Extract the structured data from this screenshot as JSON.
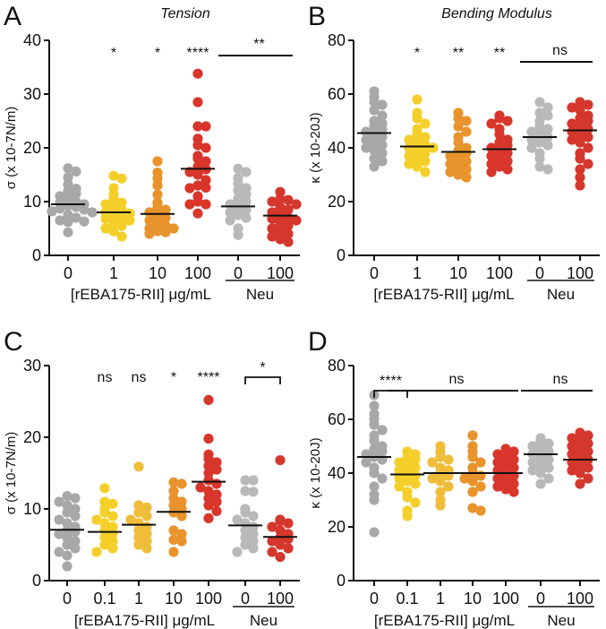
{
  "chart_data": [
    {
      "type": "scatter",
      "panel": "A",
      "title": "Tension",
      "ylabel": "σ (x 10-7N/m)",
      "xlabel": "[rEBA175-RII] μg/mL",
      "group_label": "Neu",
      "ylim": [
        0,
        40
      ],
      "yticks": [
        "0",
        "10",
        "20",
        "30",
        "40"
      ],
      "categories": [
        "0",
        "1",
        "10",
        "100",
        "0",
        "100"
      ],
      "neu_indices": [
        4,
        5
      ],
      "colors": [
        "#a8a8a8",
        "#f4cf2a",
        "#e8932c",
        "#d8362b",
        "#b9b9b9",
        "#d5372c"
      ],
      "means": [
        9.5,
        8.0,
        7.7,
        16.1,
        9.1,
        7.4
      ],
      "values": [
        [
          16.2,
          15.6,
          14.5,
          13.2,
          12.4,
          12,
          11.5,
          11,
          10.5,
          10,
          9.8,
          9.5,
          9.2,
          9,
          8.7,
          8.5,
          8.2,
          8,
          7.5,
          7,
          6.5,
          6.3,
          6.2,
          4.3
        ],
        [
          14.8,
          14.3,
          12.5,
          11.3,
          10.5,
          9.8,
          9.5,
          9,
          8.5,
          8,
          7.8,
          7.5,
          7,
          6.8,
          6.5,
          6,
          5.5,
          5,
          4.5,
          3.5
        ],
        [
          17.5,
          15.4,
          14.3,
          13,
          11.3,
          9.8,
          9,
          8.5,
          8,
          7.5,
          7,
          6.5,
          6,
          5.5,
          5,
          5,
          4.5,
          4.3,
          4
        ],
        [
          33.8,
          28.5,
          24,
          24,
          21.7,
          20.5,
          20,
          18.5,
          18,
          17.5,
          16.5,
          16,
          15.5,
          15,
          14,
          13,
          12.6,
          12.5,
          11,
          10,
          9.5,
          9.5,
          7.8
        ],
        [
          16.1,
          15.5,
          14.4,
          13.3,
          12.5,
          12,
          11.3,
          10.5,
          10,
          9.5,
          9,
          8.5,
          8,
          7.5,
          7,
          6.5,
          5,
          3.8
        ],
        [
          11.8,
          10.5,
          10.3,
          10,
          9.5,
          9,
          8.5,
          8,
          7.5,
          7,
          6.8,
          6.5,
          6,
          5.5,
          5,
          4.5,
          4,
          3.5,
          3,
          2.5
        ]
      ],
      "significance": [
        {
          "label": "*",
          "from": 1,
          "to": 1,
          "style": "none"
        },
        {
          "label": "*",
          "from": 2,
          "to": 2,
          "style": "none"
        },
        {
          "label": "****",
          "from": 3,
          "to": 3,
          "style": "none"
        },
        {
          "label": "**",
          "from": 4,
          "to": 5,
          "style": "line"
        }
      ]
    },
    {
      "type": "scatter",
      "panel": "B",
      "title": "Bending Modulus",
      "ylabel": "κ (x 10-20J)",
      "xlabel": "[rEBA175-RII] μg/mL",
      "group_label": "Neu",
      "ylim": [
        0,
        80
      ],
      "yticks": [
        "0",
        "20",
        "40",
        "60",
        "80"
      ],
      "categories": [
        "0",
        "1",
        "10",
        "100",
        "0",
        "100"
      ],
      "neu_indices": [
        4,
        5
      ],
      "colors": [
        "#a8a8a8",
        "#f4cf2a",
        "#e8932c",
        "#d8362b",
        "#b9b9b9",
        "#d5372c"
      ],
      "means": [
        45.5,
        40.5,
        38.5,
        39.5,
        44,
        46.5
      ],
      "values": [
        [
          61,
          59,
          57,
          56,
          54,
          52,
          50,
          49,
          48,
          47,
          46,
          45,
          44,
          43,
          42,
          41,
          40,
          39,
          38,
          36,
          35,
          33
        ],
        [
          58,
          53,
          51,
          49,
          47,
          45,
          44,
          43,
          42,
          41,
          40,
          40,
          39,
          38,
          37,
          36,
          35,
          34,
          33,
          31
        ],
        [
          53,
          51,
          50,
          48,
          46,
          44,
          42,
          40,
          39,
          38,
          37,
          36,
          35,
          34,
          33,
          32,
          31,
          30,
          29
        ],
        [
          52,
          51,
          50,
          49,
          47,
          45,
          43,
          42,
          41,
          40,
          39,
          38,
          37,
          36,
          35,
          34,
          33,
          32,
          31
        ],
        [
          57,
          55,
          53,
          52,
          50,
          48,
          47,
          46,
          45,
          44,
          43,
          42,
          41,
          40,
          38,
          36,
          33,
          32
        ],
        [
          57,
          56,
          55,
          54,
          52,
          51,
          50,
          49,
          48,
          47,
          46,
          45,
          44,
          43,
          42,
          40,
          38,
          36,
          34,
          32,
          29,
          26
        ]
      ],
      "significance": [
        {
          "label": "*",
          "from": 1,
          "to": 1,
          "style": "none"
        },
        {
          "label": "**",
          "from": 2,
          "to": 2,
          "style": "none"
        },
        {
          "label": "**",
          "from": 3,
          "to": 3,
          "style": "none"
        },
        {
          "label": "ns",
          "from": 4,
          "to": 5,
          "style": "line"
        }
      ]
    },
    {
      "type": "scatter",
      "panel": "C",
      "title": "",
      "ylabel": "σ (x 10-7N/m)",
      "xlabel": "[rEBA175-RII] μg/mL",
      "group_label": "Neu",
      "ylim": [
        0,
        30
      ],
      "yticks": [
        "0",
        "10",
        "20",
        "30"
      ],
      "categories": [
        "0",
        "0.1",
        "1",
        "10",
        "100",
        "0",
        "100"
      ],
      "neu_indices": [
        5,
        6
      ],
      "colors": [
        "#a8a8a8",
        "#f4cf2a",
        "#f0bd3a",
        "#e8932c",
        "#d8362b",
        "#b9b9b9",
        "#d5372c"
      ],
      "means": [
        7.1,
        6.8,
        7.8,
        9.6,
        13.8,
        7.7,
        6.1
      ],
      "values": [
        [
          11.8,
          11.5,
          11,
          10.5,
          10,
          9.5,
          9,
          8.5,
          8,
          7.5,
          7,
          6.8,
          6.5,
          6,
          5.5,
          5,
          4.5,
          4,
          3.5,
          2
        ],
        [
          12.9,
          11,
          10.7,
          10,
          9.5,
          9,
          8.5,
          8,
          7.5,
          7,
          6.5,
          6,
          5.5,
          5,
          4.5,
          4
        ],
        [
          15.9,
          10.5,
          10.2,
          9.5,
          9,
          8.5,
          8,
          7.5,
          7,
          6.5,
          6,
          5.5,
          5,
          4.5
        ],
        [
          13.7,
          13.5,
          12.5,
          11.5,
          11,
          10.5,
          10,
          9.5,
          9,
          7,
          6.5,
          5.7,
          5.5,
          4
        ],
        [
          25.2,
          19.8,
          17.6,
          17,
          16.5,
          16,
          15.5,
          15,
          14,
          13.5,
          13,
          12.5,
          12,
          11.5,
          11,
          10.5,
          9.7,
          8.7
        ],
        [
          14,
          14,
          12.5,
          12.4,
          10,
          9.5,
          9,
          8.5,
          8,
          7.5,
          7,
          6.5,
          6,
          5.5,
          5,
          4.5,
          4
        ],
        [
          16.8,
          8.5,
          8.3,
          8,
          7.5,
          7,
          6.5,
          6,
          5.8,
          5.5,
          5,
          4.5,
          4,
          3.3
        ]
      ],
      "significance": [
        {
          "label": "ns",
          "from": 1,
          "to": 1,
          "style": "none"
        },
        {
          "label": "ns",
          "from": 2,
          "to": 2,
          "style": "none"
        },
        {
          "label": "*",
          "from": 3,
          "to": 3,
          "style": "none"
        },
        {
          "label": "****",
          "from": 4,
          "to": 4,
          "style": "none"
        },
        {
          "label": "*",
          "from": 5,
          "to": 6,
          "style": "bracket"
        }
      ]
    },
    {
      "type": "scatter",
      "panel": "D",
      "title": "",
      "ylabel": "κ (x 10-20J)",
      "xlabel": "[rEBA175-RII] μg/mL",
      "group_label": "Neu",
      "ylim": [
        0,
        80
      ],
      "yticks": [
        "0",
        "20",
        "40",
        "60",
        "80"
      ],
      "categories": [
        "0",
        "0.1",
        "1",
        "10",
        "100",
        "0",
        "100"
      ],
      "neu_indices": [
        5,
        6
      ],
      "colors": [
        "#a8a8a8",
        "#f4cf2a",
        "#f0bd3a",
        "#e8932c",
        "#d8362b",
        "#b9b9b9",
        "#d5372c"
      ],
      "means": [
        46,
        39.5,
        40,
        40,
        40,
        47,
        45
      ],
      "values": [
        [
          69,
          65,
          62,
          60,
          58,
          56,
          54,
          52,
          50,
          49,
          48,
          47,
          46,
          45,
          44,
          42,
          40,
          38,
          35,
          32,
          30,
          18
        ],
        [
          48,
          47,
          46,
          45,
          44,
          43,
          42,
          41,
          40,
          39,
          38,
          37,
          36,
          35,
          33,
          31,
          29,
          26,
          24
        ],
        [
          50,
          48,
          46,
          45,
          44,
          42,
          41,
          40,
          39,
          38,
          37,
          35,
          33,
          30,
          28
        ],
        [
          54,
          50,
          48,
          46,
          44,
          42,
          40,
          39,
          38,
          37,
          35,
          33,
          27,
          26
        ],
        [
          49,
          48,
          47,
          46,
          45,
          44,
          43,
          42,
          41,
          40,
          39,
          38,
          37,
          36,
          35,
          34,
          33
        ],
        [
          53,
          52,
          51,
          50,
          49,
          48,
          47,
          46,
          45,
          44,
          43,
          42,
          41,
          40,
          38,
          36
        ],
        [
          55,
          54,
          53,
          52,
          51,
          50,
          49,
          48,
          47,
          46,
          45,
          44,
          43,
          42,
          41,
          40,
          38,
          36
        ]
      ],
      "significance": [
        {
          "label": "****",
          "from": 0,
          "to": 1,
          "style": "bracket"
        },
        {
          "label": "ns",
          "from": 1,
          "to": 4,
          "style": "line"
        },
        {
          "label": "ns",
          "from": 5,
          "to": 6,
          "style": "line"
        }
      ]
    }
  ]
}
